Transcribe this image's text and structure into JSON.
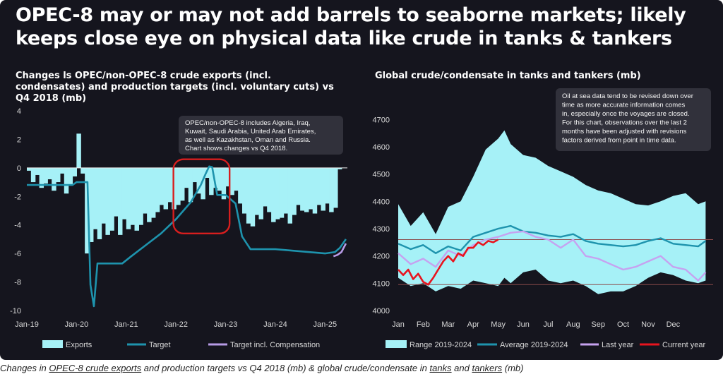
{
  "headline": "OPEC-8 may or may not add barrels to seaborne markets; likely keeps close eye on physical data like crude in tanks & tankers",
  "caption": {
    "parts": [
      {
        "text": "Changes in ",
        "u": false
      },
      {
        "text": "OPEC-8 crude exports",
        "u": true
      },
      {
        "text": " and production targets vs Q4 2018 (mb) & global crude/condensate in ",
        "u": false
      },
      {
        "text": "tanks",
        "u": true
      },
      {
        "text": " and ",
        "u": false
      },
      {
        "text": "tankers",
        "u": true
      },
      {
        "text": " (mb)",
        "u": false
      }
    ]
  },
  "colors": {
    "background": "#15151e",
    "exports": "#a6f1f7",
    "target": "#1e93ad",
    "compensation": "#b79be6",
    "range": "#a6f1f7",
    "average": "#1e93ad",
    "last_year": "#c6a2f0",
    "current_year": "#e8141e",
    "highlight_box": "#d81e1e"
  },
  "chart_data": [
    {
      "type": "area",
      "title": "Changes ls OPEC/non-OPEC-8 crude exports (incl. condensates) and production targets (incl. voluntary cuts) vs Q4 2018 (mb)",
      "title_lines": [
        "Changes ls OPEC/non-OPEC-8 crude exports (incl.",
        "condensates) and production targets (incl. voluntary cuts) vs",
        "Q4 2018 (mb)"
      ],
      "ylim": [
        -10,
        4
      ],
      "y_ticks": [
        "4",
        "2",
        "0",
        "-2",
        "-4",
        "-6",
        "-8",
        "-10"
      ],
      "y_tick_values": [
        4,
        2,
        0,
        -2,
        -4,
        -6,
        -8,
        -10
      ],
      "xlim": [
        2019.0,
        2025.45
      ],
      "x_ticks": [
        "Jan-19",
        "Jan-20",
        "Jan-21",
        "Jan-22",
        "Jan-23",
        "Jan-24",
        "Jan-25"
      ],
      "x_tick_values": [
        2019,
        2020,
        2021,
        2022,
        2023,
        2024,
        2025
      ],
      "annotation_lines": [
        "OPEC/non-OPEC-8 includes Algeria, Iraq,",
        "Kuwait, Saudi Arabia, United Arab Emirates,",
        "as well as Kazakhstan, Oman and Russia.",
        "Chart shows changes vs Q4 2018."
      ],
      "legend": [
        "Exports",
        "Target",
        "Target incl. Compensation"
      ],
      "legend_position": "bottom",
      "series": [
        {
          "name": "Exports",
          "kind": "bars",
          "x": [
            2019.0,
            2019.083,
            2019.167,
            2019.25,
            2019.333,
            2019.417,
            2019.5,
            2019.583,
            2019.667,
            2019.75,
            2019.833,
            2019.917,
            2020.0,
            2020.083,
            2020.167,
            2020.25,
            2020.333,
            2020.417,
            2020.5,
            2020.583,
            2020.667,
            2020.75,
            2020.833,
            2020.917,
            2021.0,
            2021.083,
            2021.167,
            2021.25,
            2021.333,
            2021.417,
            2021.5,
            2021.583,
            2021.667,
            2021.75,
            2021.833,
            2021.917,
            2022.0,
            2022.083,
            2022.167,
            2022.25,
            2022.333,
            2022.417,
            2022.5,
            2022.583,
            2022.667,
            2022.75,
            2022.833,
            2022.917,
            2023.0,
            2023.083,
            2023.167,
            2023.25,
            2023.333,
            2023.417,
            2023.5,
            2023.583,
            2023.667,
            2023.75,
            2023.833,
            2023.917,
            2024.0,
            2024.083,
            2024.167,
            2024.25,
            2024.333,
            2024.417,
            2024.5,
            2024.583,
            2024.667,
            2024.75,
            2024.833,
            2024.917,
            2025.0,
            2025.083,
            2025.167,
            2025.25
          ],
          "values": [
            -0.2,
            -1.0,
            -0.5,
            -1.4,
            -1.1,
            -0.8,
            -1.6,
            -1.0,
            -0.4,
            -1.8,
            -1.2,
            -0.6,
            2.4,
            -0.4,
            -6.0,
            -5.2,
            -4.3,
            -5.0,
            -3.9,
            -4.7,
            -4.4,
            -3.4,
            -4.7,
            -3.6,
            -4.3,
            -4.0,
            -4.4,
            -4.0,
            -3.2,
            -3.8,
            -3.5,
            -3.1,
            -2.6,
            -2.9,
            -2.4,
            -2.9,
            -2.6,
            -2.3,
            -1.4,
            -2.4,
            -1.0,
            -1.8,
            -2.2,
            -0.7,
            -1.9,
            -1.4,
            -1.6,
            -2.2,
            -1.3,
            -1.9,
            -1.6,
            -2.5,
            -3.2,
            -3.9,
            -4.1,
            -3.3,
            -3.6,
            -2.7,
            -3.1,
            -3.8,
            -3.6,
            -3.5,
            -3.2,
            -3.9,
            -3.3,
            -2.6,
            -3.0,
            -3.1,
            -2.9,
            -3.2,
            -2.6,
            -3.0,
            -2.5,
            -3.1,
            -2.8,
            -0.1
          ]
        },
        {
          "name": "Target",
          "kind": "line",
          "points": [
            [
              2019.0,
              -1.2
            ],
            [
              2019.08,
              -1.2
            ],
            [
              2019.5,
              -1.2
            ],
            [
              2019.92,
              -1.2
            ],
            [
              2020.0,
              -1.0
            ],
            [
              2020.22,
              -1.0
            ],
            [
              2020.28,
              -8.2
            ],
            [
              2020.35,
              -9.7
            ],
            [
              2020.42,
              -6.7
            ],
            [
              2020.55,
              -6.7
            ],
            [
              2020.92,
              -6.7
            ],
            [
              2021.1,
              -6.2
            ],
            [
              2021.4,
              -5.4
            ],
            [
              2021.7,
              -4.6
            ],
            [
              2022.0,
              -3.6
            ],
            [
              2022.3,
              -2.4
            ],
            [
              2022.5,
              -1.2
            ],
            [
              2022.6,
              -0.4
            ],
            [
              2022.67,
              0.1
            ],
            [
              2022.73,
              0.05
            ],
            [
              2022.83,
              -1.9
            ],
            [
              2023.0,
              -1.9
            ],
            [
              2023.2,
              -2.5
            ],
            [
              2023.33,
              -4.8
            ],
            [
              2023.5,
              -5.7
            ],
            [
              2024.0,
              -5.7
            ],
            [
              2025.0,
              -6.0
            ],
            [
              2025.2,
              -5.9
            ],
            [
              2025.3,
              -5.6
            ],
            [
              2025.42,
              -5.0
            ]
          ]
        },
        {
          "name": "Target incl. Compensation",
          "kind": "line",
          "points": [
            [
              2025.17,
              -6.2
            ],
            [
              2025.25,
              -6.1
            ],
            [
              2025.33,
              -5.9
            ],
            [
              2025.42,
              -5.3
            ]
          ]
        }
      ],
      "highlight_box": {
        "x_from": 2021.95,
        "x_to": 2023.08,
        "y_from": 0.6,
        "y_to": -4.6
      }
    },
    {
      "type": "line",
      "title": "Global crude/condensate in tanks and tankers (mb)",
      "ylim": [
        4000,
        4750
      ],
      "y_ticks": [
        "4700",
        "4600",
        "4500",
        "4400",
        "4300",
        "4200",
        "4100",
        "4000"
      ],
      "y_tick_values": [
        4700,
        4600,
        4500,
        4400,
        4300,
        4200,
        4100,
        4000
      ],
      "xlim": [
        0,
        12.6
      ],
      "x_ticks": [
        "Jan",
        "Feb",
        "Mar",
        "Apr",
        "May",
        "Jun",
        "Jul",
        "Aug",
        "Sep",
        "Oct",
        "Nov",
        "Dec"
      ],
      "x_tick_values": [
        0,
        1,
        2,
        3,
        4,
        5,
        6,
        7,
        8,
        9,
        10,
        11
      ],
      "annotation_lines": [
        "Oil at sea data tend to be revised down over",
        "time as more accurate information comes",
        "in, especially once the voyages are closed.",
        "For this chart, observations over the last 2",
        "months have been adjusted with revisions",
        "factors derived from point in time data."
      ],
      "reference_lines": [
        4260,
        4095
      ],
      "legend": [
        "Range 2019-2024",
        "Average 2019-2024",
        "Last year",
        "Current year"
      ],
      "legend_position": "bottom",
      "series": [
        {
          "name": "Range 2019-2024",
          "kind": "band",
          "x": [
            0,
            0.5,
            1,
            1.5,
            2,
            2.5,
            3,
            3.5,
            4,
            4.25,
            4.5,
            5,
            5.5,
            6,
            6.5,
            7,
            7.5,
            8,
            8.5,
            9,
            9.5,
            10,
            10.5,
            11,
            11.5,
            12,
            12.3
          ],
          "upper": [
            4390,
            4310,
            4360,
            4280,
            4380,
            4400,
            4490,
            4590,
            4630,
            4660,
            4610,
            4570,
            4560,
            4530,
            4510,
            4490,
            4460,
            4440,
            4430,
            4410,
            4390,
            4385,
            4400,
            4420,
            4430,
            4390,
            4400
          ],
          "lower": [
            4120,
            4090,
            4100,
            4070,
            4090,
            4080,
            4110,
            4100,
            4090,
            4120,
            4100,
            4140,
            4150,
            4110,
            4100,
            4110,
            4090,
            4060,
            4070,
            4070,
            4090,
            4120,
            4140,
            4130,
            4110,
            4100,
            4110
          ]
        },
        {
          "name": "Average 2019-2024",
          "kind": "line",
          "x": [
            0,
            0.5,
            1,
            1.5,
            2,
            2.5,
            3,
            3.5,
            4,
            4.5,
            5,
            5.5,
            6,
            6.5,
            7,
            7.5,
            8,
            8.5,
            9,
            9.5,
            10,
            10.5,
            11,
            11.5,
            12,
            12.3
          ],
          "values": [
            4245,
            4225,
            4240,
            4210,
            4235,
            4220,
            4270,
            4285,
            4300,
            4310,
            4290,
            4285,
            4275,
            4270,
            4280,
            4255,
            4245,
            4240,
            4235,
            4240,
            4255,
            4265,
            4245,
            4240,
            4235,
            4255
          ]
        },
        {
          "name": "Last year",
          "kind": "line",
          "x": [
            0,
            0.5,
            1,
            1.5,
            2,
            2.5,
            3,
            3.5,
            4,
            4.5,
            5,
            5.5,
            6,
            6.5,
            7,
            7.5,
            8,
            8.5,
            9,
            9.5,
            10,
            10.5,
            11,
            11.5,
            12,
            12.3
          ],
          "values": [
            4210,
            4170,
            4190,
            4160,
            4220,
            4200,
            4240,
            4260,
            4270,
            4285,
            4290,
            4270,
            4260,
            4230,
            4260,
            4200,
            4190,
            4170,
            4150,
            4160,
            4180,
            4200,
            4160,
            4150,
            4110,
            4140
          ]
        },
        {
          "name": "Current year",
          "kind": "line",
          "x": [
            0,
            0.2,
            0.4,
            0.6,
            0.8,
            1,
            1.2,
            1.4,
            1.6,
            1.8,
            2,
            2.2,
            2.4,
            2.6,
            2.8,
            3,
            3.2,
            3.4,
            3.6,
            3.8,
            4.0
          ],
          "values": [
            4150,
            4130,
            4150,
            4115,
            4135,
            4105,
            4095,
            4120,
            4150,
            4180,
            4200,
            4180,
            4210,
            4200,
            4230,
            4230,
            4250,
            4240,
            4255,
            4250,
            4260
          ]
        }
      ]
    }
  ]
}
